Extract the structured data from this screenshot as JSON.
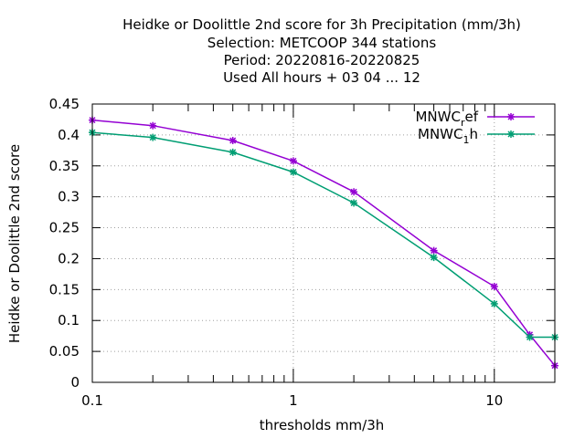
{
  "chart_data": {
    "type": "line",
    "title_lines": [
      "Heidke or Doolittle 2nd score  for 3h Precipitation (mm/3h)",
      "Selection: METCOOP    344 stations",
      "Period: 20220816-20220825",
      "Used  All hours + 03 04 ... 12"
    ],
    "xlabel": "thresholds mm/3h",
    "ylabel": "Heidke or Doolittle 2nd score",
    "x_scale": "log",
    "xlim": [
      0.1,
      20
    ],
    "ylim": [
      0,
      0.45
    ],
    "grid": true,
    "legend_position": "top-right",
    "x_ticks": [
      {
        "value": 0.1,
        "label": "0.1"
      },
      {
        "value": 1,
        "label": "1"
      },
      {
        "value": 10,
        "label": "10"
      }
    ],
    "y_ticks": [
      {
        "value": 0,
        "label": "0"
      },
      {
        "value": 0.05,
        "label": "0.05"
      },
      {
        "value": 0.1,
        "label": "0.1"
      },
      {
        "value": 0.15,
        "label": "0.15"
      },
      {
        "value": 0.2,
        "label": "0.2"
      },
      {
        "value": 0.25,
        "label": "0.25"
      },
      {
        "value": 0.3,
        "label": "0.3"
      },
      {
        "value": 0.35,
        "label": "0.35"
      },
      {
        "value": 0.4,
        "label": "0.4"
      },
      {
        "value": 0.45,
        "label": "0.45"
      }
    ],
    "x": [
      0.1,
      0.2,
      0.5,
      1,
      2,
      5,
      10,
      15,
      20
    ],
    "series": [
      {
        "name_base": "MNWC",
        "name_sub": "r",
        "name_rest": "ef",
        "color": "#9400d3",
        "values": [
          0.424,
          0.415,
          0.391,
          0.358,
          0.308,
          0.213,
          0.155,
          0.077,
          0.027
        ]
      },
      {
        "name_base": "MNWC",
        "name_sub": "1",
        "name_rest": "h",
        "color": "#009e73",
        "values": [
          0.404,
          0.396,
          0.372,
          0.34,
          0.29,
          0.202,
          0.127,
          0.073,
          0.073
        ]
      }
    ]
  }
}
